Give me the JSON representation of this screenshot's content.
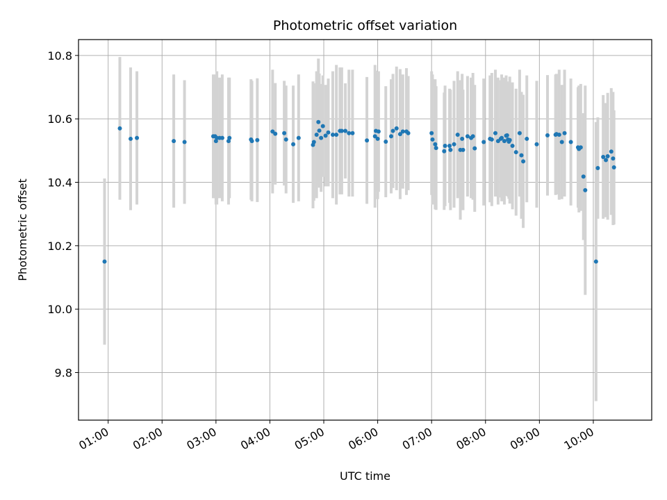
{
  "chart_data": {
    "type": "scatter",
    "title": "Photometric offset variation",
    "xlabel": "UTC time",
    "ylabel": "Photometric offset",
    "grid": true,
    "xlim": [
      "00:27",
      "11:05"
    ],
    "ylim": [
      9.65,
      10.85
    ],
    "x_ticks": [
      "01:00",
      "02:00",
      "03:00",
      "04:00",
      "05:00",
      "06:00",
      "07:00",
      "08:00",
      "09:00",
      "10:00"
    ],
    "y_ticks": [
      "9.8",
      "10.0",
      "10.2",
      "10.4",
      "10.6",
      "10.8"
    ],
    "colors": {
      "marker": "#1f77b4",
      "errorbar": "#d3d3d3",
      "grid": "#b0b0b0"
    },
    "series": [
      {
        "x": [
          "00:56",
          "01:13",
          "01:25",
          "01:32",
          "02:13",
          "02:25",
          "02:57",
          "02:59",
          "03:00",
          "03:01",
          "03:04",
          "03:07",
          "03:14",
          "03:15",
          "03:39",
          "03:40",
          "03:46",
          "04:03",
          "04:06",
          "04:16",
          "04:18",
          "04:26",
          "04:32",
          "04:48",
          "04:49",
          "04:52",
          "04:54",
          "04:55",
          "04:57",
          "04:59",
          "05:02",
          "05:05",
          "05:10",
          "05:14",
          "05:18",
          "05:20",
          "05:24",
          "05:28",
          "05:32",
          "05:48",
          "05:57",
          "05:58",
          "06:00",
          "06:01",
          "06:09",
          "06:15",
          "06:17",
          "06:21",
          "06:25",
          "06:28",
          "06:32",
          "06:34",
          "07:00",
          "07:01",
          "07:04",
          "07:05",
          "07:14",
          "07:15",
          "07:20",
          "07:21",
          "07:25",
          "07:29",
          "07:32",
          "07:34",
          "07:35",
          "07:40",
          "07:44",
          "07:46",
          "07:48",
          "07:58",
          "08:05",
          "08:07",
          "08:11",
          "08:14",
          "08:17",
          "08:18",
          "08:21",
          "08:23",
          "08:24",
          "08:25",
          "08:26",
          "08:27",
          "08:30",
          "08:34",
          "08:38",
          "08:40",
          "08:42",
          "08:46",
          "08:57",
          "09:09",
          "09:18",
          "09:19",
          "09:22",
          "09:25",
          "09:28",
          "09:35",
          "09:43",
          "09:44",
          "09:46",
          "09:49",
          "09:51",
          "10:03",
          "10:05",
          "10:11",
          "10:14",
          "10:16",
          "10:20",
          "10:22",
          "10:23"
        ],
        "y": [
          10.15,
          10.57,
          10.537,
          10.54,
          10.53,
          10.527,
          10.545,
          10.545,
          10.53,
          10.54,
          10.54,
          10.54,
          10.53,
          10.54,
          10.535,
          10.53,
          10.533,
          10.56,
          10.553,
          10.555,
          10.535,
          10.52,
          10.54,
          10.518,
          10.527,
          10.55,
          10.59,
          10.563,
          10.54,
          10.577,
          10.547,
          10.557,
          10.55,
          10.55,
          10.562,
          10.562,
          10.562,
          10.555,
          10.555,
          10.532,
          10.545,
          10.562,
          10.537,
          10.56,
          10.528,
          10.545,
          10.562,
          10.57,
          10.552,
          10.56,
          10.56,
          10.555,
          10.555,
          10.535,
          10.52,
          10.508,
          10.498,
          10.515,
          10.515,
          10.502,
          10.52,
          10.55,
          10.502,
          10.537,
          10.502,
          10.545,
          10.54,
          10.545,
          10.507,
          10.527,
          10.537,
          10.535,
          10.555,
          10.53,
          10.537,
          10.54,
          10.53,
          10.547,
          10.548,
          10.535,
          10.528,
          10.533,
          10.515,
          10.495,
          10.555,
          10.485,
          10.466,
          10.537,
          10.52,
          10.548,
          10.55,
          10.552,
          10.55,
          10.527,
          10.555,
          10.527,
          10.51,
          10.505,
          10.51,
          10.418,
          10.375,
          10.15,
          10.445,
          10.48,
          10.47,
          10.482,
          10.497,
          10.475,
          10.447
        ],
        "yerr": [
          0.262,
          0.225,
          0.225,
          0.21,
          0.21,
          0.195,
          0.195,
          0.195,
          0.2,
          0.21,
          0.19,
          0.2,
          0.2,
          0.19,
          0.19,
          0.19,
          0.195,
          0.195,
          0.16,
          0.165,
          0.17,
          0.185,
          0.2,
          0.2,
          0.185,
          0.2,
          0.2,
          0.18,
          0.17,
          0.16,
          0.16,
          0.17,
          0.2,
          0.22,
          0.2,
          0.2,
          0.15,
          0.2,
          0.2,
          0.2,
          0.225,
          0.19,
          0.19,
          0.19,
          0.175,
          0.18,
          0.18,
          0.195,
          0.205,
          0.18,
          0.2,
          0.18,
          0.195,
          0.205,
          0.205,
          0.195,
          0.185,
          0.19,
          0.18,
          0.19,
          0.2,
          0.2,
          0.22,
          0.205,
          0.19,
          0.19,
          0.19,
          0.2,
          0.2,
          0.2,
          0.2,
          0.21,
          0.2,
          0.2,
          0.185,
          0.2,
          0.2,
          0.19,
          0.17,
          0.18,
          0.18,
          0.2,
          0.2,
          0.2,
          0.2,
          0.2,
          0.21,
          0.2,
          0.2,
          0.19,
          0.19,
          0.19,
          0.205,
          0.18,
          0.2,
          0.2,
          0.19,
          0.2,
          0.2,
          0.2,
          0.33,
          0.44,
          0.16,
          0.195,
          0.18,
          0.2,
          0.2,
          0.21,
          0.18
        ]
      }
    ]
  }
}
